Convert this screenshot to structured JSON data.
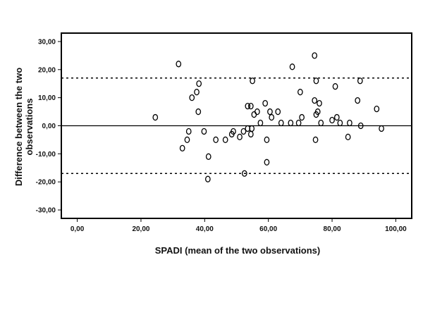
{
  "chart_data": {
    "type": "scatter",
    "title": "",
    "xlabel": "SPADI (mean of the two observations)",
    "ylabel_lines": [
      "Difference between the two",
      "observations"
    ],
    "xlim": [
      -5,
      105
    ],
    "ylim": [
      -33,
      33
    ],
    "x_ticks": [
      0,
      20,
      40,
      60,
      80,
      100
    ],
    "x_tick_labels": [
      "0,00",
      "20,00",
      "40,00",
      "60,00",
      "80,00",
      "100,00"
    ],
    "y_ticks": [
      30,
      20,
      10,
      0,
      -10,
      -20,
      -30
    ],
    "y_tick_labels": [
      "30,00",
      "20,00",
      "10,00",
      "0,00",
      "-10,00",
      "-20,00",
      "-30,00"
    ],
    "zero_line": 0,
    "limits_of_agreement": [
      17,
      -17
    ],
    "grid": false,
    "marker": "open-circle",
    "points": [
      [
        24.5,
        3
      ],
      [
        31.8,
        22
      ],
      [
        33,
        -8
      ],
      [
        34.5,
        -5
      ],
      [
        35,
        -2
      ],
      [
        36,
        10
      ],
      [
        37.5,
        12
      ],
      [
        38,
        5
      ],
      [
        38.2,
        15
      ],
      [
        39.8,
        -2
      ],
      [
        41,
        -19
      ],
      [
        41.2,
        -11
      ],
      [
        43.5,
        -5
      ],
      [
        46.5,
        -5
      ],
      [
        48.5,
        -3
      ],
      [
        49,
        -2
      ],
      [
        51,
        -4
      ],
      [
        52.2,
        -2
      ],
      [
        52.5,
        -17
      ],
      [
        53.5,
        7
      ],
      [
        53.5,
        -1
      ],
      [
        54.5,
        -3
      ],
      [
        54.5,
        7
      ],
      [
        54.8,
        -1
      ],
      [
        55,
        16
      ],
      [
        55.5,
        4
      ],
      [
        56.5,
        5
      ],
      [
        57.5,
        1
      ],
      [
        59,
        8
      ],
      [
        59.5,
        -5
      ],
      [
        59.5,
        -13
      ],
      [
        60.5,
        5
      ],
      [
        61,
        3
      ],
      [
        63,
        5
      ],
      [
        64,
        1
      ],
      [
        67,
        1
      ],
      [
        67.5,
        21
      ],
      [
        69.5,
        1
      ],
      [
        70,
        12
      ],
      [
        70.5,
        3
      ],
      [
        74.5,
        25
      ],
      [
        74.5,
        9
      ],
      [
        74.8,
        -5
      ],
      [
        75,
        16
      ],
      [
        75,
        4
      ],
      [
        75.5,
        5
      ],
      [
        76,
        8
      ],
      [
        76.5,
        1
      ],
      [
        80,
        2
      ],
      [
        81,
        14
      ],
      [
        81.5,
        3
      ],
      [
        82.5,
        1
      ],
      [
        85,
        -4
      ],
      [
        85.5,
        1
      ],
      [
        88,
        9
      ],
      [
        88.8,
        16
      ],
      [
        89,
        0
      ],
      [
        94,
        6
      ],
      [
        95.5,
        -1
      ]
    ]
  }
}
